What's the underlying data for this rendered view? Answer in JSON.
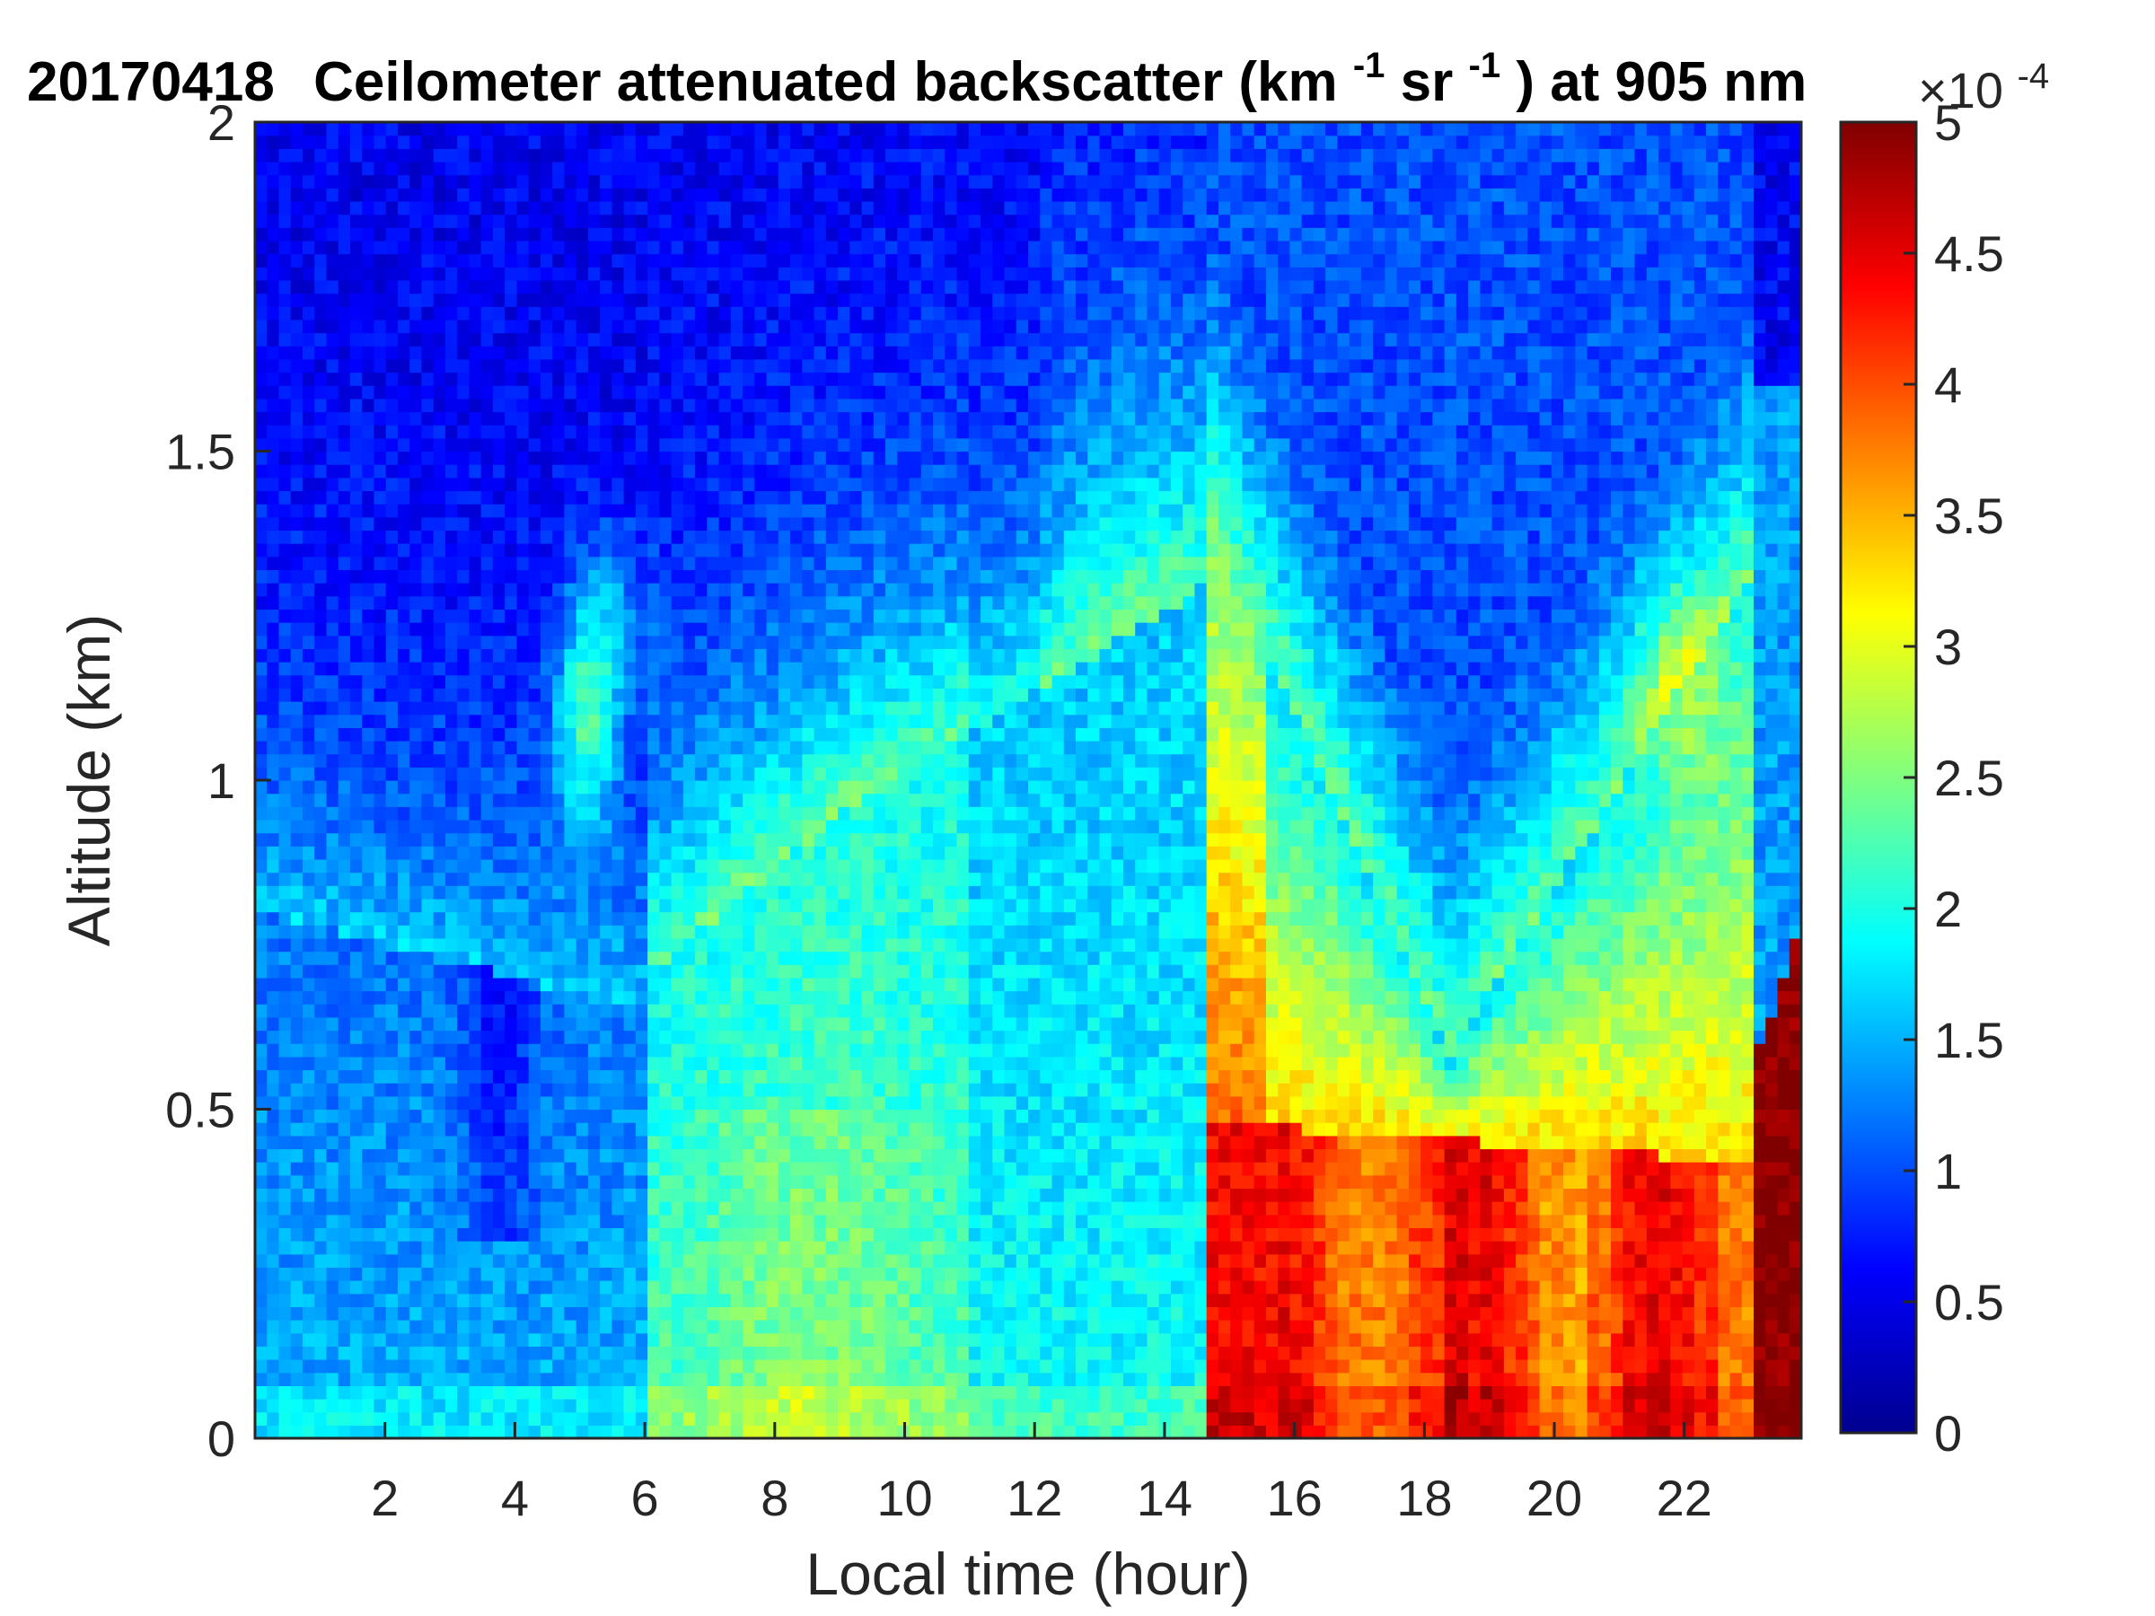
{
  "chart_data": {
    "type": "heatmap",
    "title_parts": {
      "date": "20170418",
      "text1": "Ceilometer attenuated backscatter (km",
      "sup1": "-1",
      "text2": "sr",
      "sup2": "-1",
      "text3": ") at 905 nm"
    },
    "xlabel": "Local time (hour)",
    "ylabel": "Altitude (km)",
    "xlim": [
      0,
      23.8
    ],
    "ylim": [
      0,
      2
    ],
    "xticks": [
      "2",
      "4",
      "6",
      "8",
      "10",
      "12",
      "14",
      "16",
      "18",
      "20",
      "22"
    ],
    "yticks": [
      "0",
      "0.5",
      "1",
      "1.5",
      "2"
    ],
    "colorbar": {
      "ticks": [
        "0",
        "0.5",
        "1",
        "1.5",
        "2",
        "2.5",
        "3",
        "3.5",
        "4",
        "4.5",
        "5"
      ],
      "exponent_base": "×10",
      "exponent_power": "-4",
      "range": [
        0,
        5
      ],
      "colormap": "jet"
    },
    "features": [
      {
        "time_range": [
          0,
          6
        ],
        "description_value": "low backscatter 0.5–2 ×10^-4 below 1 km"
      },
      {
        "time_range": [
          14.7,
          23.8
        ],
        "description_value": "high backscatter 3–5 ×10^-4 below 0.5 km"
      }
    ]
  }
}
